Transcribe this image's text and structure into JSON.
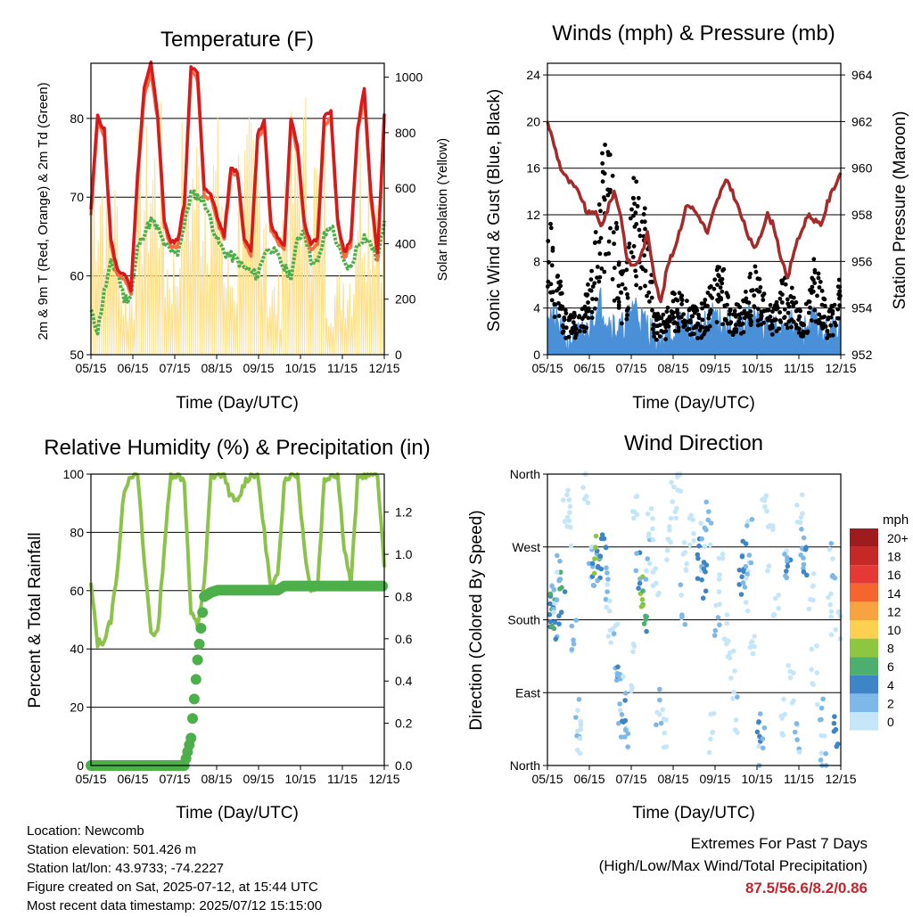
{
  "chart_data": [
    {
      "type": "line",
      "title": "Temperature (F)",
      "xlabel": "Time (Day/UTC)",
      "ylabel": "2m & 9m T (Red, Orange) & 2m Td (Green)",
      "y2label": "Solar Insolation (Yellow)",
      "x_ticks": [
        "05/15",
        "06/15",
        "07/15",
        "08/15",
        "09/15",
        "10/15",
        "11/15",
        "12/15"
      ],
      "ylim": [
        50,
        87
      ],
      "y_ticks": [
        50,
        60,
        70,
        80
      ],
      "y2lim": [
        0,
        1050
      ],
      "y2_ticks": [
        0,
        200,
        400,
        600,
        800,
        1000
      ],
      "grid": true,
      "series": [
        {
          "name": "2m T",
          "color": "#d7191c",
          "values": [
            68.5,
            80.4,
            78.5,
            64.6,
            60.6,
            60.4,
            58.1,
            72.8,
            83.8,
            86.9,
            80.6,
            67.1,
            64.2,
            64.5,
            69.1,
            86.8,
            85.6,
            70.9,
            70.6,
            67.3,
            65.2,
            73.8,
            73.2,
            64.9,
            63.2,
            77.9,
            79.9,
            66.5,
            64.9,
            63.8,
            79.8,
            76.6,
            66.9,
            64.1,
            64.7,
            80.1,
            81.0,
            67.0,
            62.9,
            64.5,
            79.0,
            83.7,
            70.2,
            62.7,
            80.6
          ]
        },
        {
          "name": "9m T",
          "color": "#f46d43",
          "values": [
            67.8,
            79.5,
            77.7,
            63.9,
            59.9,
            59.8,
            57.5,
            72.1,
            82.9,
            86.0,
            79.8,
            66.4,
            63.6,
            63.9,
            68.5,
            85.9,
            84.8,
            70.2,
            69.9,
            66.7,
            64.6,
            73.1,
            72.5,
            64.3,
            62.6,
            77.1,
            79.1,
            65.8,
            64.3,
            63.2,
            79.0,
            75.8,
            66.3,
            63.5,
            64.1,
            79.3,
            80.2,
            66.4,
            62.3,
            63.9,
            78.2,
            82.9,
            69.5,
            62.1,
            79.8
          ]
        },
        {
          "name": "2m Td",
          "color": "#4daf4a",
          "values": [
            55.5,
            53.0,
            58.0,
            61.5,
            60.5,
            57.0,
            57.5,
            63.5,
            65.5,
            67.0,
            66.0,
            64.0,
            63.0,
            63.0,
            66.5,
            70.5,
            70.0,
            69.5,
            67.0,
            64.5,
            63.0,
            62.5,
            62.0,
            61.0,
            60.5,
            60.0,
            63.0,
            63.5,
            62.5,
            61.0,
            60.0,
            64.5,
            66.0,
            62.0,
            61.5,
            65.0,
            66.5,
            64.0,
            61.5,
            61.0,
            64.0,
            65.0,
            64.0,
            62.0,
            67.0
          ]
        }
      ],
      "solar_insolation": {
        "name": "Solar Insolation",
        "color": "#fee08b",
        "daily_peaks": [
          880,
          700,
          300,
          850,
          920,
          450,
          880,
          900,
          880,
          400,
          880,
          860,
          300,
          880,
          1000,
          850,
          320,
          400,
          880,
          850
        ]
      }
    },
    {
      "type": "line",
      "title": "Winds (mph) & Pressure (mb)",
      "xlabel": "Time (Day/UTC)",
      "ylabel": "Sonic Wind & Gust (Blue, Black)",
      "y2label": "Station Pressure (Maroon)",
      "x_ticks": [
        "05/15",
        "06/15",
        "07/15",
        "08/15",
        "09/15",
        "10/15",
        "11/15",
        "12/15"
      ],
      "ylim": [
        0,
        25
      ],
      "y_ticks": [
        0,
        4,
        8,
        12,
        16,
        20,
        24
      ],
      "y2lim": [
        952,
        964.5
      ],
      "y2_ticks": [
        952,
        954,
        956,
        958,
        960,
        962,
        964
      ],
      "grid": true,
      "series": [
        {
          "name": "Station Pressure",
          "color": "#a52a2a",
          "values": [
            962.0,
            961.0,
            960.0,
            959.5,
            959.2,
            958.8,
            958.0,
            958.2,
            957.5,
            958.2,
            959.0,
            958.0,
            956.0,
            955.8,
            956.2,
            957.2,
            955.5,
            954.2,
            955.8,
            956.5,
            957.5,
            958.5,
            958.2,
            957.8,
            957.2,
            958.2,
            959.0,
            959.5,
            958.8,
            958.0,
            957.2,
            956.5,
            957.2,
            958.0,
            957.5,
            956.2,
            955.2,
            956.5,
            957.2,
            958.0,
            957.8,
            957.5,
            958.5,
            959.2,
            959.8
          ]
        },
        {
          "name": "Sonic Wind",
          "color": "#4a90d9",
          "values": [
            4.0,
            3.0,
            2.0,
            1.0,
            1.5,
            1.5,
            2.0,
            3.5,
            4.5,
            3.0,
            2.5,
            2.0,
            3.0,
            4.5,
            3.0,
            2.5,
            1.5,
            1.0,
            1.5,
            2.0,
            2.5,
            2.5,
            2.0,
            2.0,
            2.5,
            3.5,
            3.0,
            2.5,
            2.0,
            2.0,
            3.0,
            3.5,
            2.5,
            2.0,
            2.0,
            2.5,
            3.0,
            2.0,
            1.5,
            2.5,
            3.0,
            2.0,
            1.5,
            2.0,
            3.5
          ]
        },
        {
          "name": "Gust",
          "color": "#000000",
          "values": [
            13.0,
            9.0,
            6.0,
            3.0,
            3.5,
            4.0,
            6.0,
            9.0,
            16.0,
            21.0,
            13.0,
            7.0,
            8.0,
            16.5,
            15.5,
            11.0,
            4.0,
            3.0,
            4.0,
            5.5,
            5.0,
            4.5,
            4.0,
            4.0,
            5.5,
            6.5,
            8.0,
            6.0,
            4.5,
            4.0,
            6.0,
            7.5,
            6.0,
            4.5,
            4.5,
            6.0,
            6.5,
            5.0,
            3.5,
            4.5,
            8.0,
            6.0,
            3.5,
            4.5,
            8.5
          ]
        }
      ]
    },
    {
      "type": "line",
      "title": "Relative Humidity (%) & Precipitation (in)",
      "xlabel": "Time (Day/UTC)",
      "ylabel": "Percent & Total Rainfall",
      "x_ticks": [
        "05/15",
        "06/15",
        "07/15",
        "08/15",
        "09/15",
        "10/15",
        "11/15",
        "12/15"
      ],
      "ylim": [
        0,
        100
      ],
      "y_ticks": [
        0,
        20,
        40,
        60,
        80,
        100
      ],
      "y2lim": [
        0,
        1.38
      ],
      "y2_ticks": [
        "0.0",
        "0.2",
        "0.4",
        "0.6",
        "0.8",
        "1.0",
        "1.2"
      ],
      "grid": true,
      "series": [
        {
          "name": "Relative Humidity",
          "color": "#8bc34a",
          "values": [
            62,
            42,
            43,
            50,
            68,
            95,
            100,
            100,
            70,
            46,
            45,
            75,
            100,
            100,
            98,
            52,
            48,
            62,
            99,
            100,
            100,
            92,
            90,
            97,
            100,
            100,
            80,
            60,
            65,
            98,
            100,
            100,
            75,
            60,
            62,
            98,
            100,
            100,
            75,
            62,
            98,
            100,
            100,
            100,
            68
          ]
        },
        {
          "name": "Total Rainfall",
          "color": "#4daf4a",
          "values": [
            0,
            0,
            0,
            0,
            0,
            0,
            0,
            0,
            0,
            0,
            0,
            0,
            0,
            0,
            0,
            0.13,
            0.5,
            0.8,
            0.82,
            0.83,
            0.83,
            0.83,
            0.83,
            0.83,
            0.83,
            0.83,
            0.83,
            0.83,
            0.83,
            0.85,
            0.85,
            0.85,
            0.85,
            0.85,
            0.85,
            0.85,
            0.85,
            0.85,
            0.85,
            0.85,
            0.85,
            0.85,
            0.85,
            0.85,
            0.85
          ]
        }
      ]
    },
    {
      "type": "scatter",
      "title": "Wind Direction",
      "xlabel": "Time (Day/UTC)",
      "ylabel": "Direction (Colored By Speed)",
      "x_ticks": [
        "05/15",
        "06/15",
        "07/15",
        "08/15",
        "09/15",
        "10/15",
        "11/15",
        "12/15"
      ],
      "y_ticks": [
        "North",
        "East",
        "South",
        "West",
        "North"
      ],
      "ylim": [
        0,
        360
      ],
      "grid": true,
      "legend": {
        "title": "mph",
        "position": "right",
        "labels": [
          "20+",
          "18",
          "16",
          "14",
          "12",
          "10",
          "8",
          "6",
          "4",
          "2",
          "0"
        ],
        "colors": [
          "#9e1b1e",
          "#c62828",
          "#e53935",
          "#f4662e",
          "#f9a340",
          "#fdd04f",
          "#8dc63f",
          "#4caf6e",
          "#3d85c6",
          "#7cb8e8",
          "#c4e6f8"
        ]
      },
      "points": [
        {
          "x": 0.01,
          "y": 180,
          "speed": 4
        },
        {
          "x": 0.02,
          "y": 190,
          "speed": 6
        },
        {
          "x": 0.03,
          "y": 175,
          "speed": 4
        },
        {
          "x": 0.02,
          "y": 205,
          "speed": 2
        },
        {
          "x": 0.05,
          "y": 210,
          "speed": 6
        },
        {
          "x": 0.04,
          "y": 230,
          "speed": 2
        },
        {
          "x": 0.06,
          "y": 320,
          "speed": 0
        },
        {
          "x": 0.08,
          "y": 300,
          "speed": 0
        },
        {
          "x": 0.09,
          "y": 150,
          "speed": 2
        },
        {
          "x": 0.1,
          "y": 60,
          "speed": 2
        },
        {
          "x": 0.11,
          "y": 30,
          "speed": 0
        },
        {
          "x": 0.13,
          "y": 340,
          "speed": 0
        },
        {
          "x": 0.15,
          "y": 250,
          "speed": 2
        },
        {
          "x": 0.16,
          "y": 240,
          "speed": 4
        },
        {
          "x": 0.17,
          "y": 255,
          "speed": 8
        },
        {
          "x": 0.18,
          "y": 230,
          "speed": 4
        },
        {
          "x": 0.19,
          "y": 260,
          "speed": 4
        },
        {
          "x": 0.2,
          "y": 215,
          "speed": 2
        },
        {
          "x": 0.21,
          "y": 175,
          "speed": 0
        },
        {
          "x": 0.23,
          "y": 150,
          "speed": 2
        },
        {
          "x": 0.24,
          "y": 110,
          "speed": 4
        },
        {
          "x": 0.25,
          "y": 80,
          "speed": 2
        },
        {
          "x": 0.26,
          "y": 60,
          "speed": 4
        },
        {
          "x": 0.27,
          "y": 30,
          "speed": 2
        },
        {
          "x": 0.29,
          "y": 120,
          "speed": 0
        },
        {
          "x": 0.3,
          "y": 330,
          "speed": 0
        },
        {
          "x": 0.31,
          "y": 240,
          "speed": 4
        },
        {
          "x": 0.32,
          "y": 220,
          "speed": 8
        },
        {
          "x": 0.33,
          "y": 195,
          "speed": 6
        },
        {
          "x": 0.34,
          "y": 260,
          "speed": 2
        },
        {
          "x": 0.35,
          "y": 290,
          "speed": 0
        },
        {
          "x": 0.37,
          "y": 230,
          "speed": 0
        },
        {
          "x": 0.38,
          "y": 80,
          "speed": 2
        },
        {
          "x": 0.4,
          "y": 40,
          "speed": 0
        },
        {
          "x": 0.41,
          "y": 270,
          "speed": 0
        },
        {
          "x": 0.43,
          "y": 320,
          "speed": 0
        },
        {
          "x": 0.45,
          "y": 340,
          "speed": 0
        },
        {
          "x": 0.46,
          "y": 200,
          "speed": 2
        },
        {
          "x": 0.47,
          "y": 260,
          "speed": 0
        },
        {
          "x": 0.49,
          "y": 290,
          "speed": 0
        },
        {
          "x": 0.52,
          "y": 250,
          "speed": 4
        },
        {
          "x": 0.53,
          "y": 270,
          "speed": 2
        },
        {
          "x": 0.54,
          "y": 230,
          "speed": 4
        },
        {
          "x": 0.55,
          "y": 300,
          "speed": 2
        },
        {
          "x": 0.56,
          "y": 40,
          "speed": 0
        },
        {
          "x": 0.58,
          "y": 190,
          "speed": 2
        },
        {
          "x": 0.59,
          "y": 240,
          "speed": 0
        },
        {
          "x": 0.61,
          "y": 160,
          "speed": 0
        },
        {
          "x": 0.63,
          "y": 120,
          "speed": 0
        },
        {
          "x": 0.64,
          "y": 60,
          "speed": 2
        },
        {
          "x": 0.66,
          "y": 240,
          "speed": 4
        },
        {
          "x": 0.67,
          "y": 260,
          "speed": 4
        },
        {
          "x": 0.68,
          "y": 210,
          "speed": 2
        },
        {
          "x": 0.69,
          "y": 280,
          "speed": 2
        },
        {
          "x": 0.7,
          "y": 130,
          "speed": 0
        },
        {
          "x": 0.72,
          "y": 40,
          "speed": 4
        },
        {
          "x": 0.73,
          "y": 20,
          "speed": 2
        },
        {
          "x": 0.74,
          "y": 330,
          "speed": 0
        },
        {
          "x": 0.76,
          "y": 270,
          "speed": 0
        },
        {
          "x": 0.78,
          "y": 200,
          "speed": 0
        },
        {
          "x": 0.8,
          "y": 60,
          "speed": 0
        },
        {
          "x": 0.81,
          "y": 250,
          "speed": 2
        },
        {
          "x": 0.82,
          "y": 230,
          "speed": 4
        },
        {
          "x": 0.83,
          "y": 100,
          "speed": 0
        },
        {
          "x": 0.85,
          "y": 30,
          "speed": 2
        },
        {
          "x": 0.86,
          "y": 310,
          "speed": 0
        },
        {
          "x": 0.87,
          "y": 270,
          "speed": 2
        },
        {
          "x": 0.88,
          "y": 255,
          "speed": 4
        },
        {
          "x": 0.9,
          "y": 220,
          "speed": 0
        },
        {
          "x": 0.91,
          "y": 130,
          "speed": 0
        },
        {
          "x": 0.93,
          "y": 60,
          "speed": 2
        },
        {
          "x": 0.94,
          "y": 20,
          "speed": 2
        },
        {
          "x": 0.96,
          "y": 190,
          "speed": 0
        },
        {
          "x": 0.97,
          "y": 250,
          "speed": 2
        },
        {
          "x": 0.98,
          "y": 40,
          "speed": 4
        },
        {
          "x": 0.99,
          "y": 170,
          "speed": 0
        }
      ]
    }
  ],
  "info": {
    "location": "Location: Newcomb",
    "elevation": "Station elevation: 501.426 m",
    "latlon": "Station lat/lon: 43.9733; -74.2227",
    "created": "Figure created on Sat, 2025-07-12, at 15:44 UTC",
    "recent": "Most recent data timestamp: 2025/07/12 15:15:00"
  },
  "extremes": {
    "title": "Extremes For Past 7 Days",
    "subtitle": "(High/Low/Max Wind/Total Precipitation)",
    "values": "87.5/56.6/8.2/0.86"
  }
}
